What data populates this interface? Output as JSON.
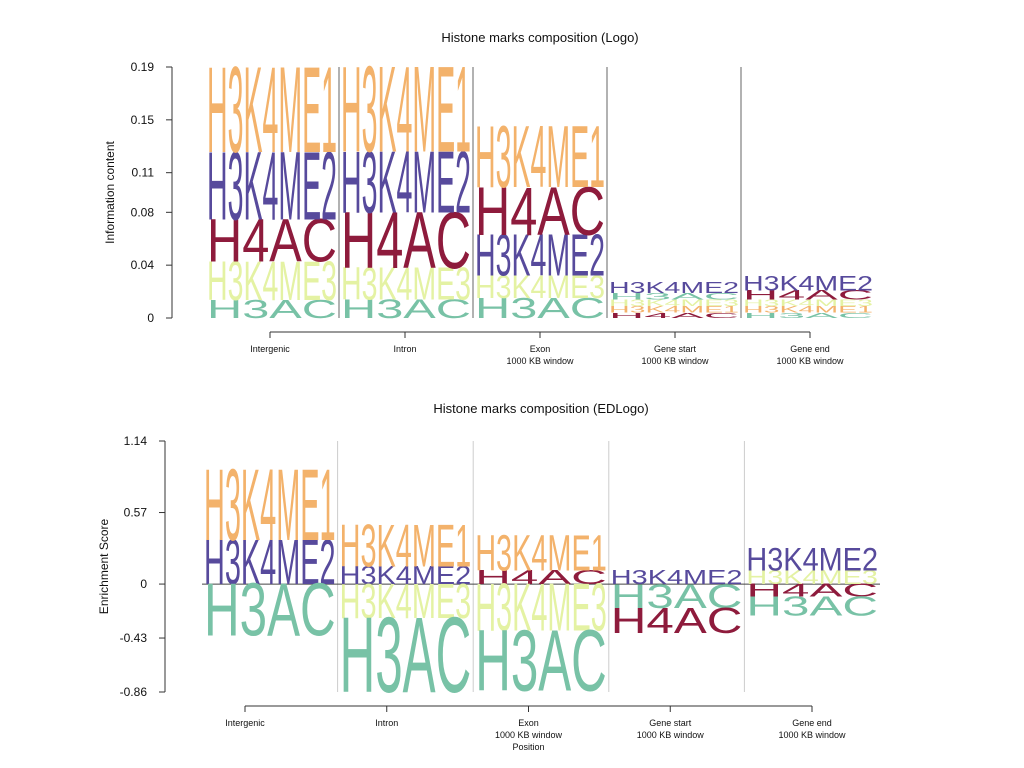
{
  "chart_data": [
    {
      "type": "logo",
      "title": "Histone marks composition (Logo)",
      "ylabel": "Information content",
      "categories": [
        [
          "Intergenic"
        ],
        [
          "Intron"
        ],
        [
          "Exon",
          "1000 KB window"
        ],
        [
          "Gene start",
          "1000 KB window"
        ],
        [
          "Gene end",
          "1000 KB window"
        ]
      ],
      "ylim": [
        0,
        0.19
      ],
      "yticks": [
        0,
        0.04,
        0.08,
        0.11,
        0.15,
        0.19
      ],
      "series": [
        {
          "name": "H3K4ME1",
          "color": "#f3b26b",
          "values": [
            0.064,
            0.064,
            0.046,
            0.005,
            0.005
          ]
        },
        {
          "name": "H3K4ME2",
          "color": "#574a9c",
          "values": [
            0.051,
            0.046,
            0.031,
            0.008,
            0.011
          ]
        },
        {
          "name": "H4AC",
          "color": "#8e1b3c",
          "values": [
            0.032,
            0.042,
            0.036,
            0.004,
            0.007
          ]
        },
        {
          "name": "H3K4ME3",
          "color": "#e4f2a3",
          "values": [
            0.029,
            0.024,
            0.017,
            0.005,
            0.005
          ]
        },
        {
          "name": "H3AC",
          "color": "#78c2a6",
          "values": [
            0.0136,
            0.014,
            0.015,
            0.005,
            0.004
          ]
        }
      ]
    },
    {
      "type": "logo",
      "title": "Histone marks composition (EDLogo)",
      "ylabel": "Enrichment Score",
      "xlabel": "Position",
      "categories": [
        [
          "Intergenic"
        ],
        [
          "Intron"
        ],
        [
          "Exon",
          "1000 KB window"
        ],
        [
          "Gene start",
          "1000 KB window"
        ],
        [
          "Gene end",
          "1000 KB window"
        ]
      ],
      "ylim": [
        -0.86,
        1.14
      ],
      "yticks": [
        -0.86,
        -0.43,
        0,
        0.57,
        1.14
      ],
      "series": [
        {
          "name": "H3K4ME1",
          "color": "#f3b26b",
          "values": [
            0.56,
            0.33,
            0.28,
            0,
            0
          ]
        },
        {
          "name": "H3K4ME2",
          "color": "#574a9c",
          "values": [
            0.35,
            0.14,
            0,
            0.11,
            0.18
          ]
        },
        {
          "name": "H4AC",
          "color": "#8e1b3c",
          "values": [
            0,
            0,
            0.11,
            -0.2,
            -0.1
          ]
        },
        {
          "name": "H3K4ME3",
          "color": "#e4f2a3",
          "values": [
            0,
            -0.27,
            -0.37,
            0,
            0.11
          ]
        },
        {
          "name": "H3AC",
          "color": "#78c2a6",
          "values": [
            -0.41,
            -0.59,
            -0.48,
            -0.19,
            -0.15
          ]
        }
      ]
    }
  ]
}
